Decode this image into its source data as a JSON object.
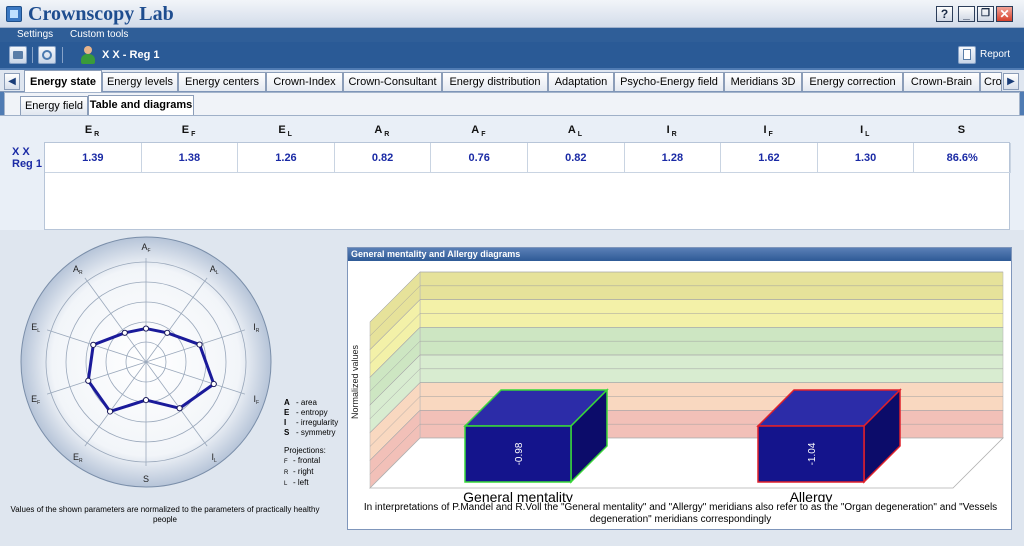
{
  "app": {
    "title": "Crownscopy Lab",
    "help": "?",
    "minimize": "_",
    "restore": "❐",
    "close": "✕"
  },
  "menu": [
    "Settings",
    "Custom tools"
  ],
  "toolbar": {
    "user_name": "X X  - Reg 1",
    "report_label": "Report"
  },
  "tabs": {
    "left_arrow": "◀",
    "right_arrow": "▶",
    "items": [
      "Energy state",
      "Energy levels",
      "Energy centers",
      "Crown-Index",
      "Crown-Consultant",
      "Energy distribution",
      "Adaptation",
      "Psycho-Energy field",
      "Meridians 3D",
      "Energy correction",
      "Crown-Brain",
      "Cro"
    ],
    "active": "Energy state"
  },
  "subtabs": {
    "items": [
      "Energy field",
      "Table and diagrams"
    ],
    "active": "Table and diagrams"
  },
  "table": {
    "columns": [
      {
        "l": "E",
        "s": "R"
      },
      {
        "l": "E",
        "s": "F"
      },
      {
        "l": "E",
        "s": "L"
      },
      {
        "l": "A",
        "s": "R"
      },
      {
        "l": "A",
        "s": "F"
      },
      {
        "l": "A",
        "s": "L"
      },
      {
        "l": "I",
        "s": "R"
      },
      {
        "l": "I",
        "s": "F"
      },
      {
        "l": "I",
        "s": "L"
      },
      {
        "l": "S",
        "s": ""
      }
    ],
    "row_label_1": "X X",
    "row_label_2": "Reg 1",
    "values": [
      "1.39",
      "1.38",
      "1.26",
      "0.82",
      "0.76",
      "0.82",
      "1.28",
      "1.62",
      "1.30",
      "86.6%"
    ]
  },
  "radar": {
    "axes": [
      {
        "l": "A",
        "s": "F"
      },
      {
        "l": "A",
        "s": "L"
      },
      {
        "l": "I",
        "s": "R"
      },
      {
        "l": "I",
        "s": "F"
      },
      {
        "l": "I",
        "s": "L"
      },
      {
        "l": "S",
        "s": ""
      },
      {
        "l": "E",
        "s": "R"
      },
      {
        "l": "E",
        "s": "F"
      },
      {
        "l": "E",
        "s": "L"
      },
      {
        "l": "A",
        "s": "R"
      }
    ],
    "values": [
      0.76,
      0.82,
      1.28,
      1.62,
      1.3,
      0.866,
      1.39,
      1.38,
      1.26,
      0.82
    ],
    "line_color": "#1a1a9a",
    "legend": [
      {
        "k": "A",
        "v": "- area"
      },
      {
        "k": "E",
        "v": "- entropy"
      },
      {
        "k": "I",
        "v": "- irregularity"
      },
      {
        "k": "S",
        "v": "- symmetry"
      }
    ],
    "projections_title": "Projections:",
    "projections": [
      {
        "k": "F",
        "v": "- frontal"
      },
      {
        "k": "R",
        "v": "- right"
      },
      {
        "k": "L",
        "v": "- left"
      }
    ],
    "note": "Values of the shown parameters are normalized to the parameters of practically healthy people"
  },
  "diagram": {
    "title": "General mentality and Allergy diagrams",
    "ylabel": "Normalized values",
    "bars": [
      {
        "name": "General mentality",
        "value": "-0.98",
        "edge": "#39d839"
      },
      {
        "name": "Allergy",
        "value": "-1.04",
        "edge": "#e0202a"
      }
    ],
    "bar_fill": "#14148c",
    "bands": [
      "#e6e29a",
      "#f3f1a8",
      "#cde6c2",
      "#d8ecd0",
      "#f9d8c0",
      "#f2c0b8"
    ],
    "note": "In interpretations of P.Mandel and R.Voll the \"General mentality\" and \"Allergy\" meridians also refer to as the \"Organ degeneration\" and \"Vessels degeneration\" meridians correspondingly"
  }
}
